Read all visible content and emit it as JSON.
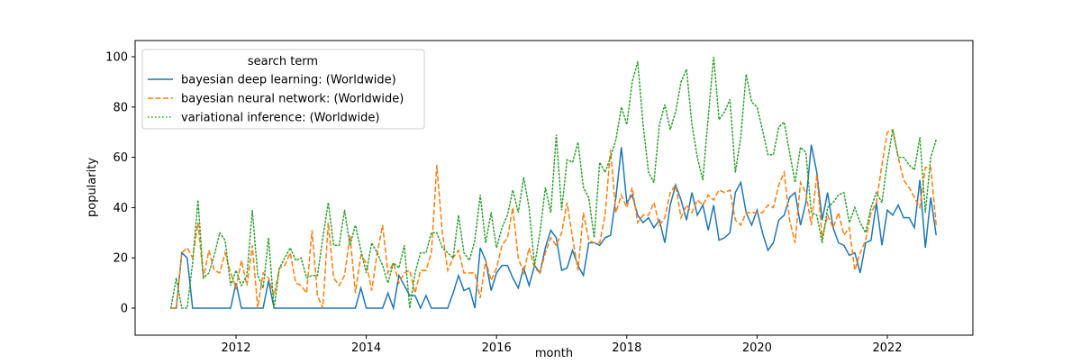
{
  "chart_data": {
    "type": "line",
    "title": "",
    "xlabel": "month",
    "ylabel": "popularity",
    "xlim": [
      "2010-06",
      "2023-05"
    ],
    "ylim": [
      -5,
      105
    ],
    "x_ticks": [
      "2012",
      "2014",
      "2016",
      "2018",
      "2020",
      "2022"
    ],
    "y_ticks": [
      "0",
      "20",
      "40",
      "60",
      "80",
      "100"
    ],
    "grid": false,
    "legend": {
      "title": "search term",
      "placement": "top-left"
    },
    "x": [
      "2011-01",
      "2011-02",
      "2011-03",
      "2011-04",
      "2011-05",
      "2011-06",
      "2011-07",
      "2011-08",
      "2011-09",
      "2011-10",
      "2011-11",
      "2011-12",
      "2012-01",
      "2012-02",
      "2012-03",
      "2012-04",
      "2012-05",
      "2012-06",
      "2012-07",
      "2012-08",
      "2012-09",
      "2012-10",
      "2012-11",
      "2012-12",
      "2013-01",
      "2013-02",
      "2013-03",
      "2013-04",
      "2013-05",
      "2013-06",
      "2013-07",
      "2013-08",
      "2013-09",
      "2013-10",
      "2013-11",
      "2013-12",
      "2014-01",
      "2014-02",
      "2014-03",
      "2014-04",
      "2014-05",
      "2014-06",
      "2014-07",
      "2014-08",
      "2014-09",
      "2014-10",
      "2014-11",
      "2014-12",
      "2015-01",
      "2015-02",
      "2015-03",
      "2015-04",
      "2015-05",
      "2015-06",
      "2015-07",
      "2015-08",
      "2015-09",
      "2015-10",
      "2015-11",
      "2015-12",
      "2016-01",
      "2016-02",
      "2016-03",
      "2016-04",
      "2016-05",
      "2016-06",
      "2016-07",
      "2016-08",
      "2016-09",
      "2016-10",
      "2016-11",
      "2016-12",
      "2017-01",
      "2017-02",
      "2017-03",
      "2017-04",
      "2017-05",
      "2017-06",
      "2017-07",
      "2017-08",
      "2017-09",
      "2017-10",
      "2017-11",
      "2017-12",
      "2018-01",
      "2018-02",
      "2018-03",
      "2018-04",
      "2018-05",
      "2018-06",
      "2018-07",
      "2018-08",
      "2018-09",
      "2018-10",
      "2018-11",
      "2018-12",
      "2019-01",
      "2019-02",
      "2019-03",
      "2019-04",
      "2019-05",
      "2019-06",
      "2019-07",
      "2019-08",
      "2019-09",
      "2019-10",
      "2019-11",
      "2019-12",
      "2020-01",
      "2020-02",
      "2020-03",
      "2020-04",
      "2020-05",
      "2020-06",
      "2020-07",
      "2020-08",
      "2020-09",
      "2020-10",
      "2020-11",
      "2020-12",
      "2021-01",
      "2021-02",
      "2021-03",
      "2021-04",
      "2021-05",
      "2021-06",
      "2021-07",
      "2021-08",
      "2021-09",
      "2021-10",
      "2021-11",
      "2021-12",
      "2022-01",
      "2022-02",
      "2022-03",
      "2022-04",
      "2022-05",
      "2022-06",
      "2022-07",
      "2022-08",
      "2022-09",
      "2022-10"
    ],
    "series": [
      {
        "name": "bayesian deep learning: (Worldwide)",
        "color": "#1f77b4",
        "style": "solid",
        "values": [
          0,
          0,
          22,
          20,
          0,
          0,
          0,
          0,
          0,
          0,
          0,
          0,
          10,
          0,
          0,
          0,
          0,
          0,
          11,
          0,
          0,
          0,
          0,
          0,
          0,
          0,
          0,
          0,
          0,
          0,
          0,
          0,
          0,
          0,
          0,
          8,
          0,
          0,
          0,
          0,
          6,
          0,
          13,
          9,
          5,
          5,
          0,
          5,
          0,
          0,
          0,
          0,
          6,
          13,
          7,
          8,
          0,
          24,
          19,
          7,
          14,
          17,
          17,
          12,
          8,
          16,
          9,
          17,
          14,
          24,
          31,
          28,
          15,
          16,
          23,
          17,
          13,
          26,
          26,
          25,
          28,
          29,
          44,
          64,
          42,
          45,
          37,
          34,
          36,
          32,
          35,
          26,
          41,
          49,
          43,
          35,
          46,
          37,
          41,
          31,
          41,
          27,
          28,
          30,
          46,
          50,
          38,
          33,
          39,
          30,
          23,
          26,
          35,
          37,
          44,
          46,
          33,
          42,
          65,
          54,
          35,
          46,
          32,
          26,
          25,
          21,
          22,
          14,
          26,
          27,
          42,
          25,
          39,
          37,
          41,
          36,
          36,
          32,
          51,
          24,
          44,
          29
        ]
      },
      {
        "name": "bayesian neural network: (Worldwide)",
        "color": "#ff7f0e",
        "style": "dashed",
        "values": [
          0,
          0,
          22,
          24,
          20,
          34,
          12,
          23,
          15,
          14,
          22,
          14,
          8,
          19,
          9,
          25,
          0,
          14,
          12,
          5,
          16,
          17,
          22,
          10,
          9,
          6,
          31,
          5,
          0,
          34,
          12,
          9,
          13,
          29,
          6,
          21,
          18,
          7,
          22,
          33,
          14,
          18,
          10,
          14,
          15,
          6,
          15,
          15,
          22,
          57,
          30,
          15,
          20,
          23,
          14,
          14,
          14,
          4,
          19,
          11,
          16,
          25,
          28,
          40,
          20,
          14,
          24,
          16,
          14,
          22,
          28,
          25,
          30,
          42,
          28,
          15,
          38,
          27,
          26,
          26,
          37,
          63,
          38,
          45,
          40,
          48,
          34,
          37,
          37,
          42,
          33,
          36,
          46,
          49,
          36,
          41,
          38,
          43,
          41,
          45,
          43,
          47,
          46,
          47,
          35,
          33,
          38,
          38,
          38,
          38,
          41,
          40,
          49,
          54,
          35,
          26,
          50,
          46,
          33,
          53,
          28,
          37,
          32,
          38,
          29,
          32,
          15,
          22,
          27,
          38,
          42,
          57,
          70,
          71,
          60,
          51,
          48,
          44,
          40,
          56,
          56,
          33
        ]
      },
      {
        "name": "variational inference: (Worldwide)",
        "color": "#2ca02c",
        "style": "dotted",
        "values": [
          0,
          12,
          0,
          0,
          18,
          43,
          12,
          14,
          21,
          30,
          27,
          9,
          15,
          9,
          13,
          39,
          13,
          8,
          28,
          0,
          16,
          20,
          24,
          19,
          20,
          12,
          13,
          13,
          28,
          42,
          25,
          25,
          39,
          25,
          33,
          23,
          14,
          26,
          22,
          17,
          10,
          18,
          16,
          25,
          0,
          14,
          22,
          22,
          30,
          30,
          24,
          22,
          20,
          37,
          22,
          19,
          27,
          45,
          26,
          38,
          24,
          32,
          37,
          47,
          38,
          52,
          40,
          17,
          30,
          48,
          38,
          69,
          39,
          59,
          58,
          66,
          48,
          44,
          28,
          58,
          54,
          60,
          67,
          80,
          73,
          90,
          98,
          73,
          54,
          50,
          73,
          81,
          71,
          78,
          90,
          95,
          73,
          60,
          51,
          76,
          100,
          75,
          78,
          83,
          54,
          68,
          93,
          82,
          80,
          71,
          61,
          61,
          72,
          74,
          62,
          50,
          64,
          62,
          38,
          37,
          26,
          40,
          42,
          45,
          46,
          34,
          40,
          34,
          30,
          40,
          46,
          42,
          58,
          71,
          60,
          60,
          57,
          55,
          68,
          38,
          60,
          67
        ]
      }
    ]
  }
}
